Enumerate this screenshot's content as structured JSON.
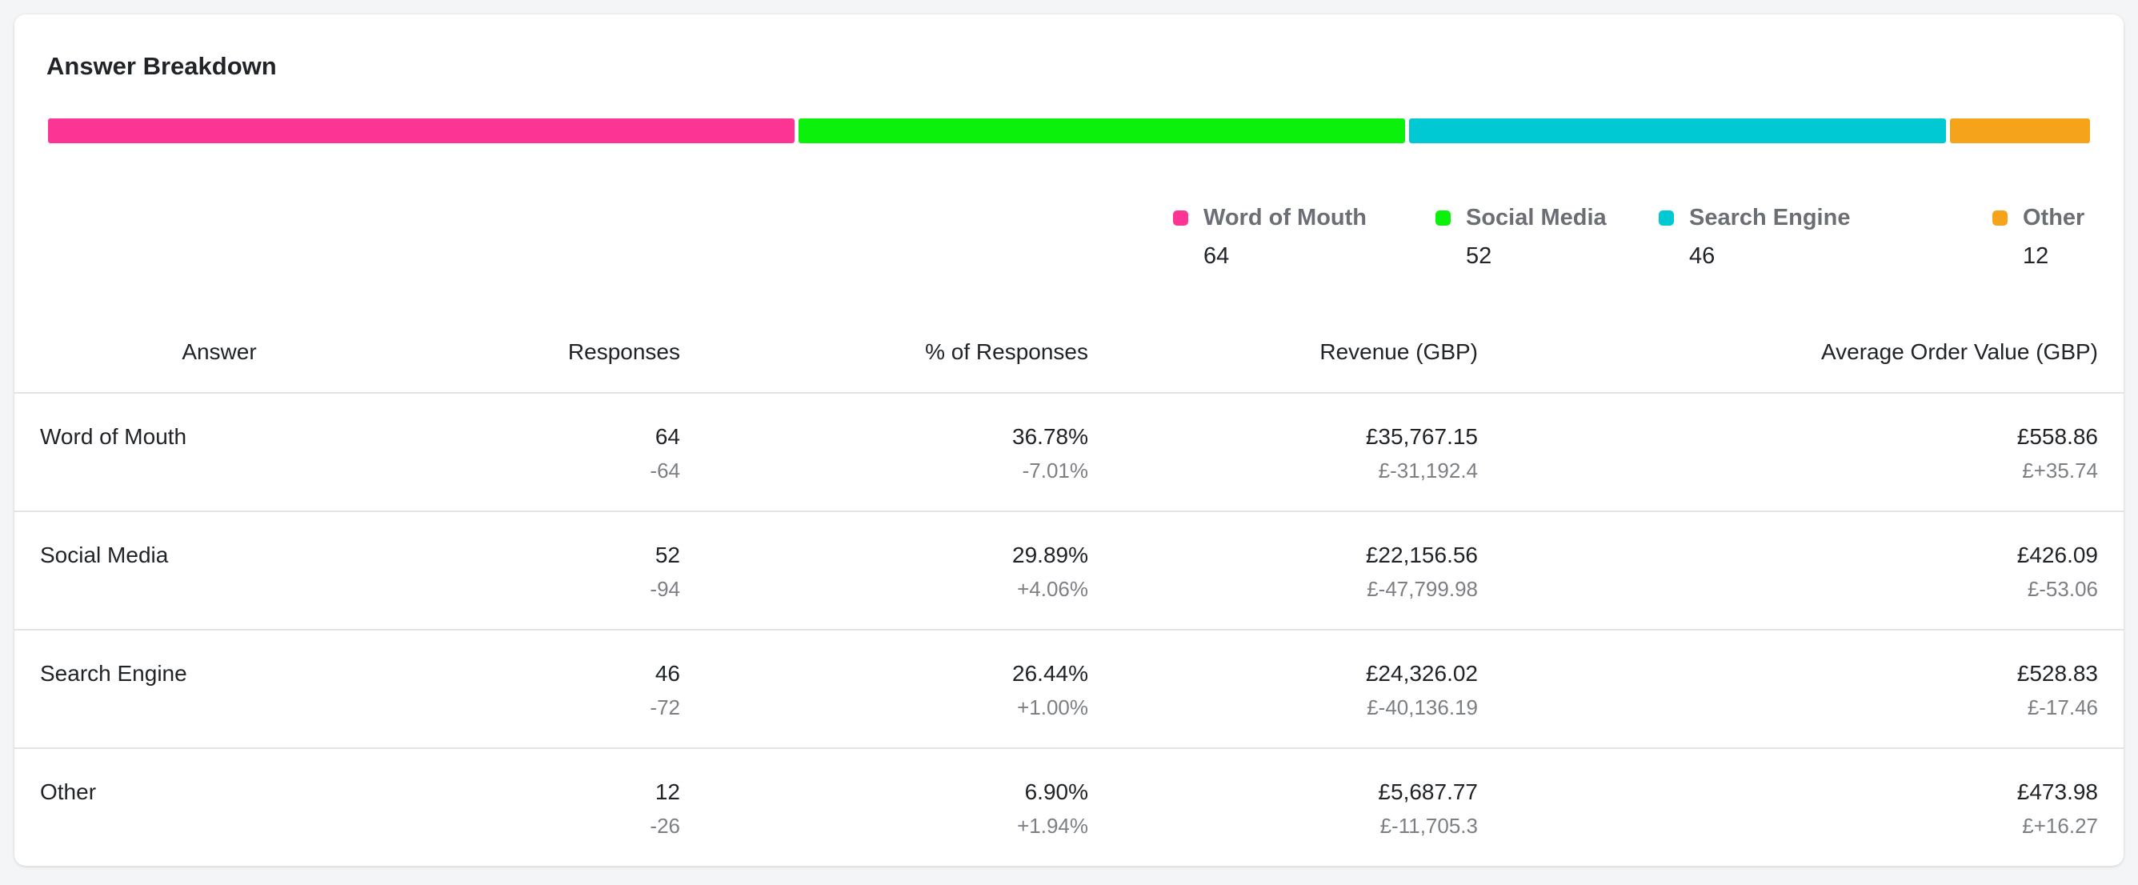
{
  "title": "Answer Breakdown",
  "breakdown": {
    "items": [
      {
        "name": "Word of Mouth",
        "color": "#fc3595",
        "value": 64
      },
      {
        "name": "Social Media",
        "color": "#0cf10c",
        "value": 52
      },
      {
        "name": "Search Engine",
        "color": "#00c9d3",
        "value": 46
      },
      {
        "name": "Other",
        "color": "#f6a31c",
        "value": 12
      }
    ]
  },
  "table": {
    "columns": [
      "Answer",
      "Responses",
      "% of Responses",
      "Revenue (GBP)",
      "Average Order Value (GBP)"
    ],
    "rows": [
      [
        "Word of Mouth",
        {
          "main": "64",
          "sub": "-64"
        },
        {
          "main": "36.78%",
          "sub": "-7.01%"
        },
        {
          "main": "£35,767.15",
          "sub": "£-31,192.4"
        },
        {
          "main": "£558.86",
          "sub": "£+35.74"
        }
      ],
      [
        "Social Media",
        {
          "main": "52",
          "sub": "-94"
        },
        {
          "main": "29.89%",
          "sub": "+4.06%"
        },
        {
          "main": "£22,156.56",
          "sub": "£-47,799.98"
        },
        {
          "main": "£426.09",
          "sub": "£-53.06"
        }
      ],
      [
        "Search Engine",
        {
          "main": "46",
          "sub": "-72"
        },
        {
          "main": "26.44%",
          "sub": "+1.00%"
        },
        {
          "main": "£24,326.02",
          "sub": "£-40,136.19"
        },
        {
          "main": "£528.83",
          "sub": "£-17.46"
        }
      ],
      [
        "Other",
        {
          "main": "12",
          "sub": "-26"
        },
        {
          "main": "6.90%",
          "sub": "+1.94%"
        },
        {
          "main": "£5,687.77",
          "sub": "£-11,705.3"
        },
        {
          "main": "£473.98",
          "sub": "£+16.27"
        }
      ]
    ]
  }
}
